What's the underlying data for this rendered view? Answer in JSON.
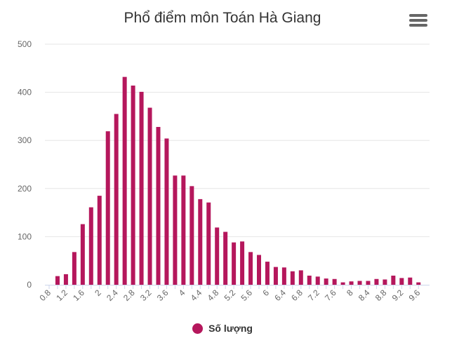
{
  "chart": {
    "title": "Phổ điểm môn Toán Hà Giang",
    "menu_icon": "hamburger-menu-icon",
    "colors": {
      "bar": "#b5175c",
      "grid": "#e6e6e6",
      "axis": "#ccd6eb",
      "text": "#666666"
    }
  },
  "chart_data": {
    "type": "bar",
    "title": "Phổ điểm môn Toán Hà Giang",
    "xlabel": "",
    "ylabel": "",
    "ylim": [
      0,
      500
    ],
    "yticks": [
      0,
      100,
      200,
      300,
      400,
      500
    ],
    "xtick_labels": [
      "0.8",
      "1.2",
      "1.6",
      "2",
      "2.4",
      "2.8",
      "3.2",
      "3.6",
      "4",
      "4.4",
      "4.8",
      "5.2",
      "5.6",
      "6",
      "6.4",
      "6.8",
      "7.2",
      "7.6",
      "8",
      "8.4",
      "8.8",
      "9.2",
      "9.6"
    ],
    "grid": true,
    "legend_position": "bottom-center",
    "categories": [
      "0.8",
      "1",
      "1.2",
      "1.4",
      "1.6",
      "1.8",
      "2",
      "2.2",
      "2.4",
      "2.6",
      "2.8",
      "3",
      "3.2",
      "3.4",
      "3.6",
      "3.8",
      "4",
      "4.2",
      "4.4",
      "4.6",
      "4.8",
      "5",
      "5.2",
      "5.4",
      "5.6",
      "5.8",
      "6",
      "6.2",
      "6.4",
      "6.6",
      "6.8",
      "7",
      "7.2",
      "7.4",
      "7.6",
      "7.8",
      "8",
      "8.2",
      "8.4",
      "8.6",
      "8.8",
      "9",
      "9.2",
      "9.4",
      "9.6"
    ],
    "series": [
      {
        "name": "Số lượng",
        "values": [
          0,
          18,
          22,
          68,
          126,
          161,
          185,
          319,
          355,
          432,
          414,
          401,
          368,
          328,
          304,
          227,
          227,
          205,
          178,
          171,
          119,
          110,
          88,
          90,
          68,
          62,
          48,
          37,
          36,
          28,
          30,
          19,
          17,
          13,
          12,
          5,
          7,
          8,
          8,
          12,
          11,
          19,
          14,
          15,
          5
        ]
      }
    ]
  },
  "legend": {
    "label": "Số lượng",
    "icon": "circle-marker-icon"
  }
}
